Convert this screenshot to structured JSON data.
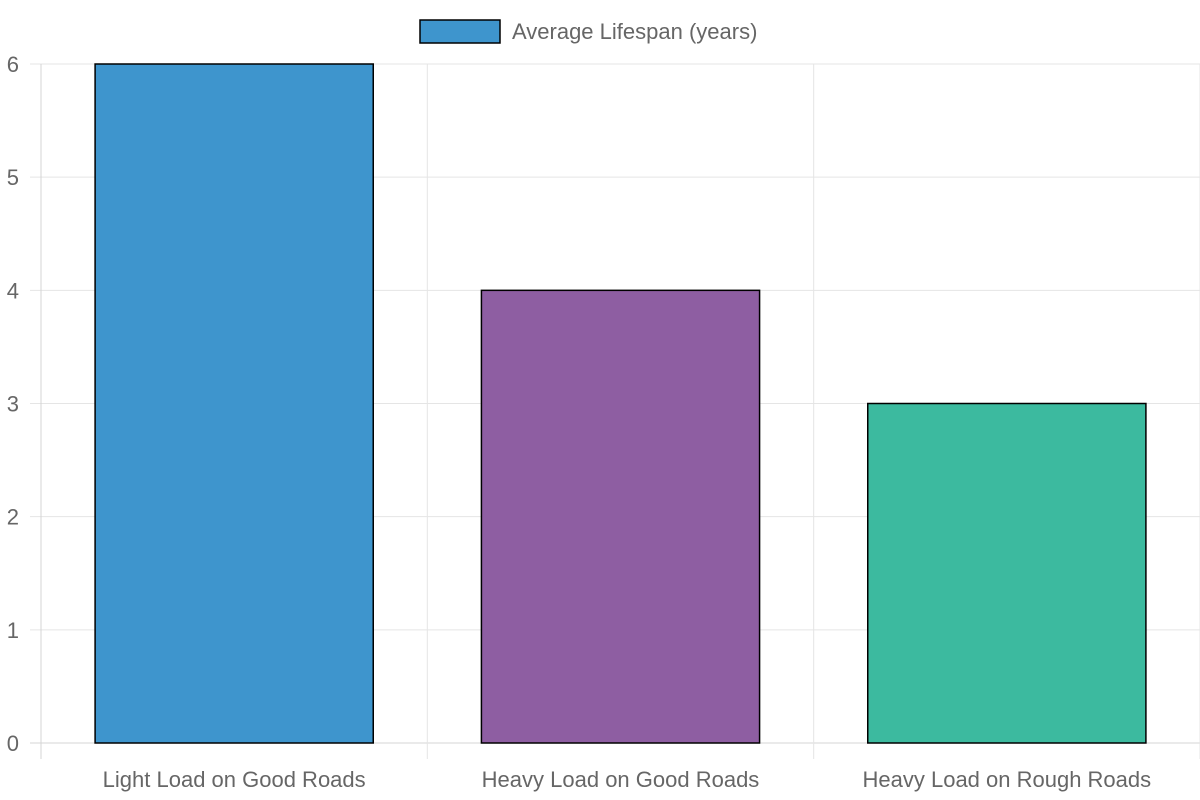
{
  "chart_data": {
    "type": "bar",
    "categories": [
      "Light Load on Good Roads",
      "Heavy Load on Good Roads",
      "Heavy Load on Rough Roads"
    ],
    "series": [
      {
        "name": "Average Lifespan (years)",
        "values": [
          6,
          4,
          3
        ],
        "colors": [
          "#3e95cd",
          "#8e5ea2",
          "#3cba9f"
        ]
      }
    ],
    "ylim": [
      0,
      6
    ],
    "yticks": [
      "0",
      "1",
      "2",
      "3",
      "4",
      "5",
      "6"
    ],
    "grid": true,
    "legend_position": "top",
    "legend_color": "#3e95cd",
    "title": "",
    "xlabel": "",
    "ylabel": ""
  }
}
